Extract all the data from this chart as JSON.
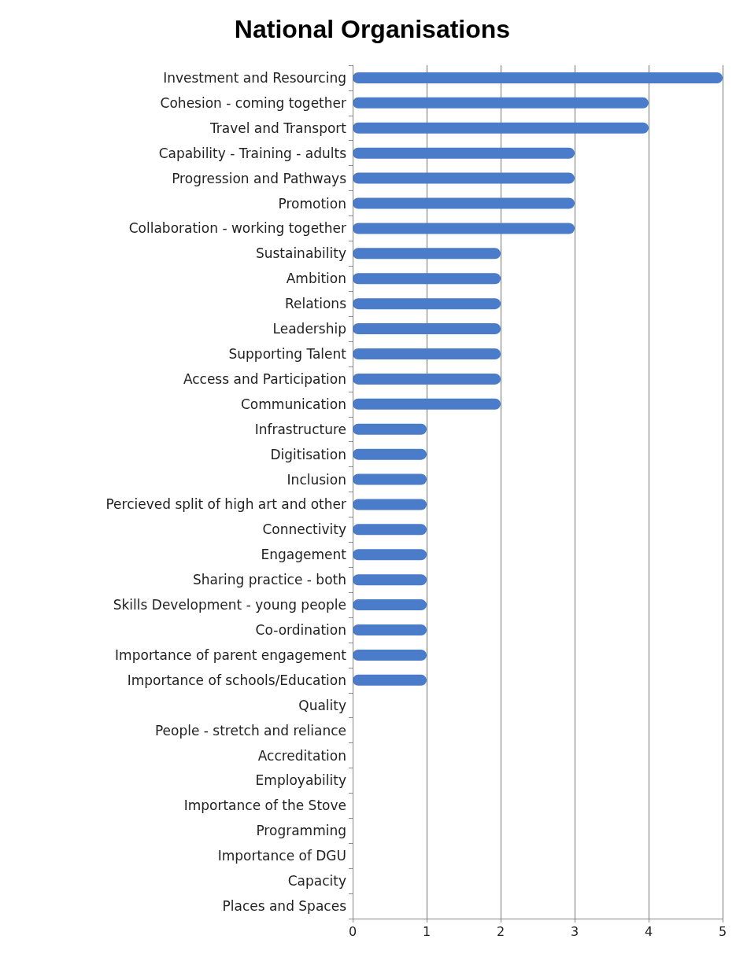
{
  "chart_data": {
    "type": "bar",
    "orientation": "horizontal",
    "title": "National Organisations",
    "categories": [
      "Investment and Resourcing",
      "Cohesion - coming together",
      "Travel and Transport",
      "Capability - Training - adults",
      "Progression and Pathways",
      "Promotion",
      "Collaboration - working together",
      "Sustainability",
      "Ambition",
      "Relations",
      "Leadership",
      "Supporting Talent",
      "Access and Participation",
      "Communication",
      "Infrastructure",
      "Digitisation",
      "Inclusion",
      "Percieved split of high art and other",
      "Connectivity",
      "Engagement",
      "Sharing practice - both",
      "Skills Development - young people",
      "Co-ordination",
      "Importance of parent engagement",
      "Importance of schools/Education",
      "Quality",
      "People - stretch and reliance",
      "Accreditation",
      "Employability",
      "Importance of the Stove",
      "Programming",
      "Importance of DGU",
      "Capacity",
      "Places and Spaces"
    ],
    "values": [
      5,
      4,
      4,
      3,
      3,
      3,
      3,
      2,
      2,
      2,
      2,
      2,
      2,
      2,
      1,
      1,
      1,
      1,
      1,
      1,
      1,
      1,
      1,
      1,
      1,
      0,
      0,
      0,
      0,
      0,
      0,
      0,
      0,
      0
    ],
    "color": "#4a7cc9",
    "xlim": [
      0,
      5
    ],
    "xticks": [
      0,
      1,
      2,
      3,
      4,
      5
    ],
    "grid": "x"
  }
}
